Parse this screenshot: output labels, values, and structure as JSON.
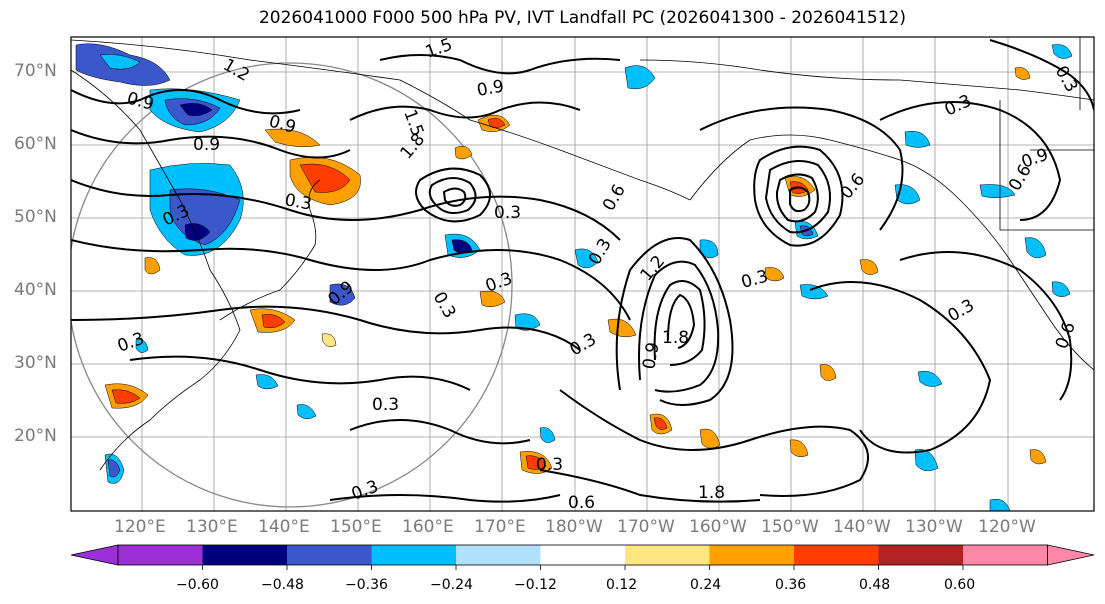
{
  "title": "2026041000 F000 500 hPa PV, IVT Landfall PC (2026041300 - 2026041512)",
  "lat_labels": [
    "70°N",
    "60°N",
    "50°N",
    "40°N",
    "30°N",
    "20°N"
  ],
  "lon_labels": [
    "120°E",
    "130°E",
    "140°E",
    "150°E",
    "160°E",
    "170°E",
    "180°W",
    "170°W",
    "160°W",
    "150°W",
    "140°W",
    "130°W",
    "120°W"
  ],
  "colorbar": {
    "ticks": [
      "−0.60",
      "−0.48",
      "−0.36",
      "−0.24",
      "−0.12",
      "0.12",
      "0.24",
      "0.36",
      "0.48",
      "0.60"
    ],
    "colors": [
      "#9b30d9",
      "#00007f",
      "#3a57cc",
      "#00bfff",
      "#b0e2ff",
      "#ffffff",
      "#ffe680",
      "#ff9f00",
      "#ff3d00",
      "#b22222",
      "#ff88a8"
    ]
  },
  "contour_labels": [
    {
      "text": "1.5"
    },
    {
      "text": "1.2"
    },
    {
      "text": "0.9"
    },
    {
      "text": "0.9"
    },
    {
      "text": "0.3"
    },
    {
      "text": "0.9"
    },
    {
      "text": "0.9"
    },
    {
      "text": "1.5"
    },
    {
      "text": "1.8"
    },
    {
      "text": "0.3"
    },
    {
      "text": "0.3"
    },
    {
      "text": "0.3"
    },
    {
      "text": "0.9"
    },
    {
      "text": "0.3"
    },
    {
      "text": "0.3"
    },
    {
      "text": "0.6"
    },
    {
      "text": "0.3"
    },
    {
      "text": "1.2"
    },
    {
      "text": "1.8"
    },
    {
      "text": "0.9"
    },
    {
      "text": "0.3"
    },
    {
      "text": "0.3"
    },
    {
      "text": "0.3"
    },
    {
      "text": "0.3"
    },
    {
      "text": "0.3"
    },
    {
      "text": "0.6"
    },
    {
      "text": "1.8"
    },
    {
      "text": "0.3"
    },
    {
      "text": "0.6"
    },
    {
      "text": "0.9"
    },
    {
      "text": "0.6"
    },
    {
      "text": "0.3"
    },
    {
      "text": "0.6"
    },
    {
      "text": "0.3"
    }
  ]
}
